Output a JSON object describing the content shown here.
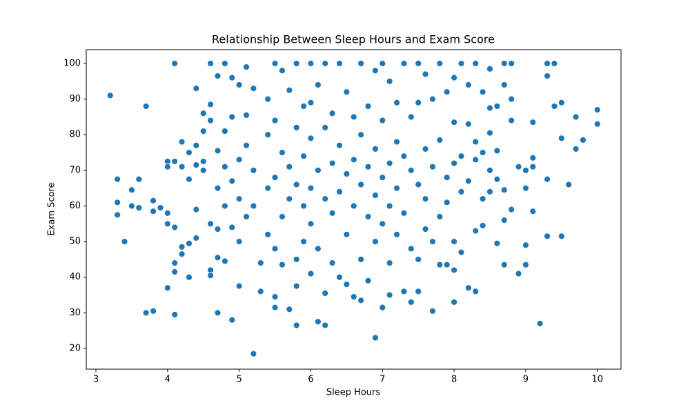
{
  "chart_data": {
    "type": "scatter",
    "title": "Relationship Between Sleep Hours and Exam Score",
    "x_label": "Sleep Hours",
    "y_label": "Exam Score",
    "color": "#1f77b4",
    "xlim": [
      2.865,
      10.33
    ],
    "ylim": [
      14.19,
      103.87
    ],
    "xticks": [
      3,
      4,
      5,
      6,
      7,
      8,
      9,
      10
    ],
    "yticks": [
      20,
      30,
      40,
      50,
      60,
      70,
      80,
      90,
      100
    ],
    "x": [
      3.2,
      3.3,
      3.3,
      3.3,
      3.4,
      3.5,
      3.5,
      3.6,
      3.6,
      3.7,
      3.7,
      3.8,
      3.8,
      3.8,
      3.9,
      4.0,
      4.0,
      4.0,
      4.0,
      4.0,
      4.1,
      4.1,
      4.1,
      4.1,
      4.1,
      4.1,
      4.2,
      4.2,
      4.2,
      4.2,
      4.3,
      4.3,
      4.3,
      4.3,
      4.4,
      4.4,
      4.4,
      4.4,
      4.4,
      4.5,
      4.5,
      4.5,
      4.5,
      4.6,
      4.6,
      4.6,
      4.6,
      4.6,
      4.6,
      4.7,
      4.7,
      4.7,
      4.7,
      4.7,
      4.7,
      4.8,
      4.8,
      4.8,
      4.8,
      4.8,
      4.9,
      4.9,
      4.9,
      4.9,
      4.9,
      5.0,
      5.0,
      5.0,
      5.0,
      5.0,
      5.1,
      5.1,
      5.1,
      5.1,
      5.2,
      5.2,
      5.2,
      5.2,
      5.3,
      5.3,
      5.4,
      5.4,
      5.4,
      5.4,
      5.5,
      5.5,
      5.5,
      5.5,
      5.5,
      5.5,
      5.6,
      5.6,
      5.6,
      5.6,
      5.7,
      5.7,
      5.7,
      5.7,
      5.8,
      5.8,
      5.8,
      5.8,
      5.8,
      5.8,
      5.9,
      5.9,
      5.9,
      5.9,
      6.0,
      6.0,
      6.0,
      6.0,
      6.0,
      6.0,
      6.1,
      6.1,
      6.1,
      6.1,
      6.2,
      6.2,
      6.2,
      6.2,
      6.2,
      6.3,
      6.3,
      6.3,
      6.3,
      6.4,
      6.4,
      6.4,
      6.4,
      6.5,
      6.5,
      6.5,
      6.5,
      6.6,
      6.6,
      6.6,
      6.6,
      6.7,
      6.7,
      6.7,
      6.7,
      6.7,
      6.8,
      6.8,
      6.8,
      6.8,
      6.9,
      6.9,
      6.9,
      6.9,
      6.9,
      7.0,
      7.0,
      7.0,
      7.0,
      7.0,
      7.1,
      7.1,
      7.1,
      7.1,
      7.1,
      7.2,
      7.2,
      7.2,
      7.2,
      7.3,
      7.3,
      7.3,
      7.3,
      7.4,
      7.4,
      7.4,
      7.4,
      7.5,
      7.5,
      7.5,
      7.5,
      7.5,
      7.6,
      7.6,
      7.6,
      7.6,
      7.7,
      7.7,
      7.7,
      7.7,
      7.8,
      7.8,
      7.8,
      7.8,
      7.9,
      7.9,
      7.9,
      7.9,
      8.0,
      8.0,
      8.0,
      8.0,
      8.0,
      8.0,
      8.1,
      8.1,
      8.1,
      8.1,
      8.2,
      8.2,
      8.2,
      8.2,
      8.3,
      8.3,
      8.3,
      8.3,
      8.3,
      8.4,
      8.4,
      8.4,
      8.4,
      8.5,
      8.5,
      8.5,
      8.5,
      8.5,
      8.6,
      8.6,
      8.6,
      8.6,
      8.7,
      8.7,
      8.7,
      8.7,
      8.7,
      8.8,
      8.8,
      8.8,
      8.8,
      8.9,
      8.9,
      9.0,
      9.0,
      9.0,
      9.0,
      9.1,
      9.1,
      9.1,
      9.1,
      9.2,
      9.3,
      9.3,
      9.3,
      9.3,
      9.4,
      9.4,
      9.5,
      9.5,
      9.5,
      9.6,
      9.7,
      9.7,
      9.8,
      10.0,
      10.0
    ],
    "values": [
      91,
      67.5,
      61,
      57.5,
      50,
      64.5,
      60,
      67.5,
      59.5,
      88,
      30,
      30.5,
      61.5,
      58.5,
      59.5,
      72.5,
      71,
      58,
      55,
      37,
      100,
      72.5,
      54,
      44,
      41.5,
      29.5,
      78,
      71,
      48.5,
      46.5,
      75,
      67.5,
      49.5,
      40,
      93,
      77,
      71.5,
      59,
      51,
      86,
      72.5,
      81,
      70,
      100,
      88.5,
      84,
      55,
      42,
      40.5,
      96.5,
      75.5,
      65,
      53.5,
      45.5,
      30,
      100,
      81,
      71,
      60,
      44.5,
      96,
      85,
      67,
      54,
      28,
      94,
      73,
      62,
      50,
      37.5,
      99,
      85.5,
      77,
      57,
      93,
      70,
      60,
      18.5,
      44,
      36,
      90,
      80,
      65,
      52,
      100,
      84,
      68,
      48,
      31.5,
      34.5,
      98,
      75,
      57,
      43.5,
      92.5,
      71,
      62,
      31,
      100,
      82,
      66,
      45,
      26.5,
      37.5,
      88,
      74,
      60,
      50,
      100,
      89,
      79,
      65,
      55,
      41,
      94,
      70,
      48,
      27.5,
      100,
      82,
      62,
      35.5,
      26.5,
      86,
      72,
      58,
      44,
      100,
      77,
      64,
      40,
      92,
      69,
      52,
      38,
      85,
      73,
      60,
      34.5,
      100,
      80,
      66,
      45,
      33.5,
      88,
      71,
      57,
      39,
      98,
      76,
      63,
      50,
      23,
      100,
      84,
      68,
      55,
      31.5,
      95,
      72,
      60,
      44,
      35,
      89,
      78,
      65,
      52,
      100,
      74,
      58,
      36,
      85,
      70,
      48,
      33,
      100,
      89,
      66,
      45,
      36,
      97,
      76,
      62,
      53.5,
      90,
      71,
      50,
      30.5,
      100,
      78.5,
      57,
      43.5,
      92,
      68,
      61,
      43.5,
      96,
      83.5,
      72,
      50,
      33,
      42,
      100,
      74,
      64,
      47,
      94,
      83,
      67,
      37,
      100,
      78,
      73,
      53,
      36,
      92,
      75,
      62,
      54.5,
      98.5,
      87.5,
      80.5,
      70,
      64,
      88,
      75.5,
      67.5,
      49.5,
      100,
      94,
      64.5,
      56,
      43.5,
      100,
      90,
      84,
      59,
      71,
      41,
      70,
      65,
      49,
      43.5,
      83.5,
      73.5,
      58.5,
      71,
      27,
      100,
      96.5,
      67.5,
      51.5,
      100,
      88,
      89,
      79,
      51.5,
      66,
      85,
      76,
      78.5,
      87,
      83
    ]
  }
}
